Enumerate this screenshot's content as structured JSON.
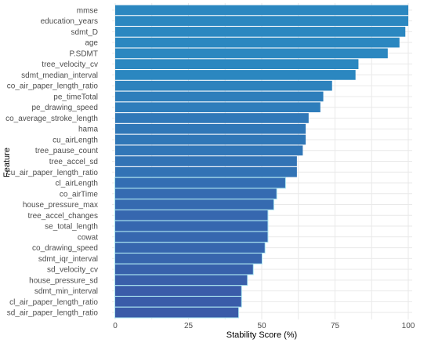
{
  "chart_data": {
    "type": "bar",
    "orientation": "horizontal",
    "xlabel": "Stability Score (%)",
    "ylabel": "Feature",
    "xlim": [
      0,
      100
    ],
    "x_ticks": [
      0,
      25,
      50,
      75,
      100
    ],
    "grid": true,
    "categories": [
      "mmse",
      "education_years",
      "sdmt_D",
      "age",
      "P.SDMT",
      "tree_velocity_cv",
      "sdmt_median_interval",
      "co_air_paper_length_ratio",
      "pe_timeTotal",
      "pe_drawing_speed",
      "co_average_stroke_length",
      "hama",
      "cu_airLength",
      "tree_pause_count",
      "tree_accel_sd",
      "cu_air_paper_length_ratio",
      "cl_airLength",
      "co_airTime",
      "house_pressure_max",
      "tree_accel_changes",
      "se_total_length",
      "cowat",
      "co_drawing_speed",
      "sdmt_iqr_interval",
      "sd_velocity_cv",
      "house_pressure_sd",
      "sdmt_min_interval",
      "cl_air_paper_length_ratio",
      "sd_air_paper_length_ratio"
    ],
    "values": [
      100,
      100,
      99,
      97,
      93,
      83,
      82,
      74,
      71,
      70,
      66,
      65,
      65,
      64,
      62,
      62,
      58,
      55,
      54,
      52,
      52,
      52,
      51,
      50,
      47,
      45,
      43,
      43,
      42
    ],
    "colors": {
      "bar_low": "#3a5ba8",
      "bar_high": "#2b87c0",
      "glow": "#aee8f2",
      "grid": "#e9e9e9",
      "tick": "#4d4d4d"
    }
  }
}
